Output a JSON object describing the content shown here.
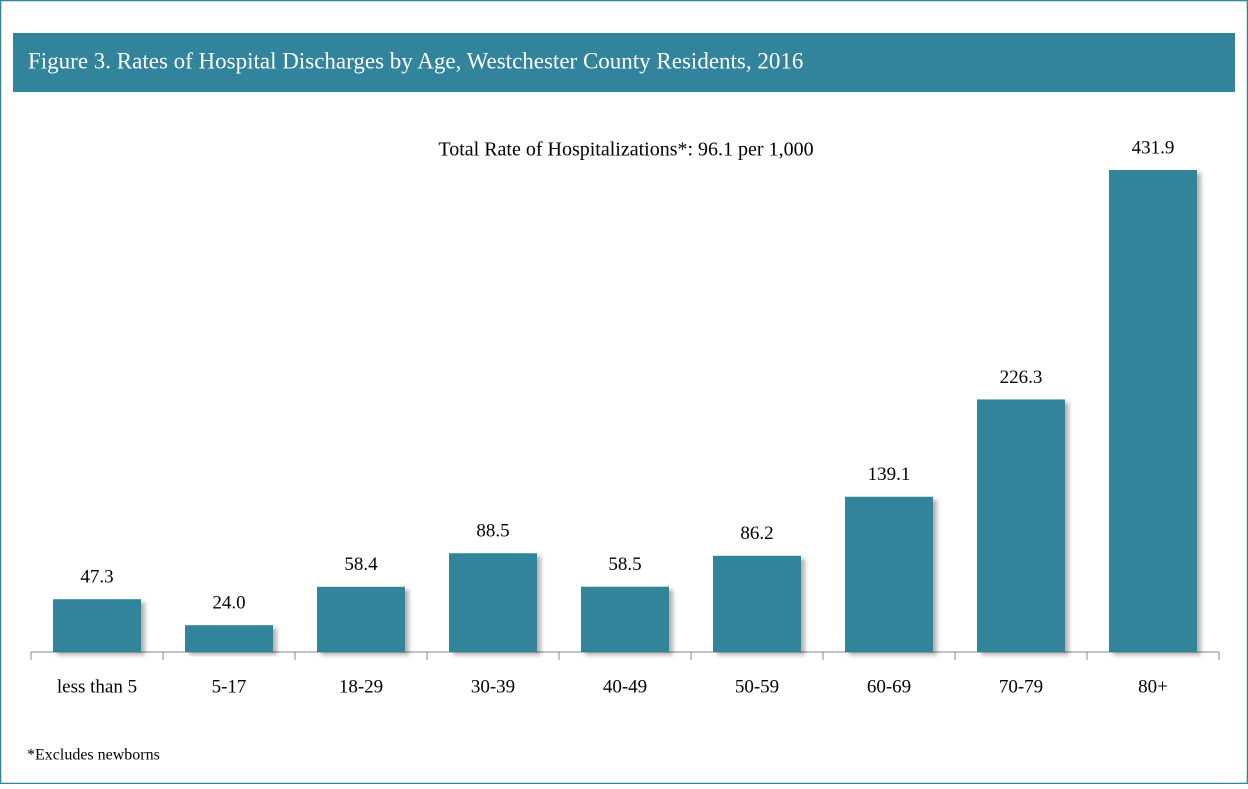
{
  "chart_data": {
    "type": "bar",
    "title": "Figure 3. Rates of Hospital Discharges by Age, Westchester County Residents, 2016",
    "annotation": "Total Rate of Hospitalizations*:  96.1 per 1,000",
    "footnote": "*Excludes newborns",
    "categories": [
      "less than 5",
      "5-17",
      "18-29",
      "30-39",
      "40-49",
      "50-59",
      "60-69",
      "70-79",
      "80+"
    ],
    "values": [
      47.3,
      24.0,
      58.4,
      88.5,
      58.5,
      86.2,
      139.1,
      226.3,
      431.9
    ],
    "value_labels": [
      "47.3",
      "24.0",
      "58.4",
      "88.5",
      "58.5",
      "86.2",
      "139.1",
      "226.3",
      "431.9"
    ],
    "color": "#31849b"
  }
}
